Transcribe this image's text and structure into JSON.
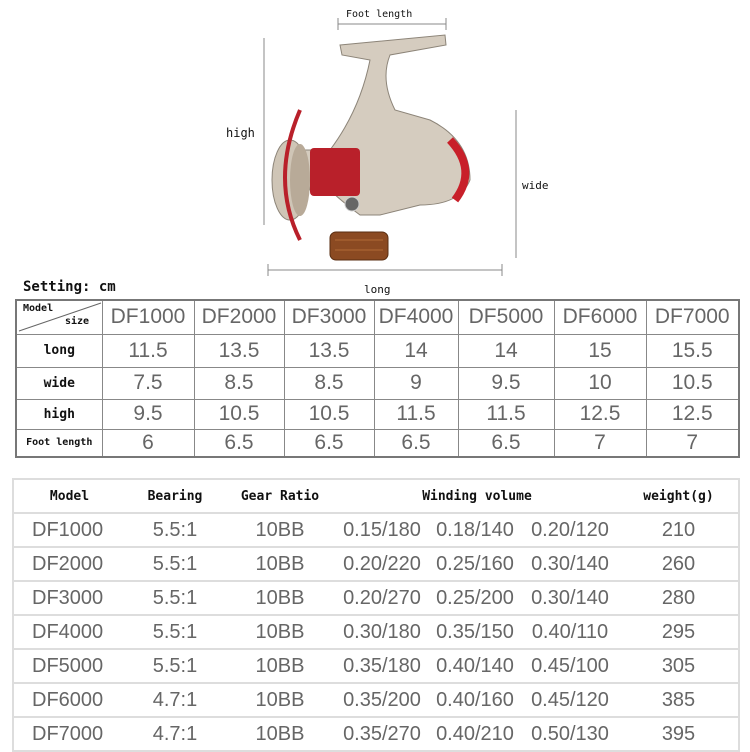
{
  "diagram": {
    "foot_length_label": "Foot length",
    "high_label": "high",
    "wide_label": "wide",
    "long_label": "long",
    "setting_label": "Setting: cm",
    "accent_color": "#c8202a",
    "body_color": "#d8cfc2"
  },
  "size_table": {
    "corner_top": "Model",
    "corner_bottom": "size",
    "models": [
      "DF1000",
      "DF2000",
      "DF3000",
      "DF4000",
      "DF5000",
      "DF6000",
      "DF7000"
    ],
    "rows": [
      {
        "label": "long",
        "values": [
          "11.5",
          "13.5",
          "13.5",
          "14",
          "14",
          "15",
          "15.5"
        ]
      },
      {
        "label": "wide",
        "values": [
          "7.5",
          "8.5",
          "8.5",
          "9",
          "9.5",
          "10",
          "10.5"
        ]
      },
      {
        "label": "high",
        "values": [
          "9.5",
          "10.5",
          "10.5",
          "11.5",
          "11.5",
          "12.5",
          "12.5"
        ]
      },
      {
        "label": "Foot length",
        "values": [
          "6",
          "6.5",
          "6.5",
          "6.5",
          "6.5",
          "7",
          "7"
        ]
      }
    ]
  },
  "spec_table": {
    "headers": [
      "Model",
      "Bearing",
      "Gear Ratio",
      "Winding volume",
      "weight(g)"
    ],
    "rows": [
      [
        "DF1000",
        "5.5:1",
        "10BB",
        "0.15/180",
        "0.18/140",
        "0.20/120",
        "210"
      ],
      [
        "DF2000",
        "5.5:1",
        "10BB",
        "0.20/220",
        "0.25/160",
        "0.30/140",
        "260"
      ],
      [
        "DF3000",
        "5.5:1",
        "10BB",
        "0.20/270",
        "0.25/200",
        "0.30/140",
        "280"
      ],
      [
        "DF4000",
        "5.5:1",
        "10BB",
        "0.30/180",
        "0.35/150",
        "0.40/110",
        "295"
      ],
      [
        "DF5000",
        "5.5:1",
        "10BB",
        "0.35/180",
        "0.40/140",
        "0.45/100",
        "305"
      ],
      [
        "DF6000",
        "4.7:1",
        "10BB",
        "0.35/200",
        "0.40/160",
        "0.45/120",
        "385"
      ],
      [
        "DF7000",
        "4.7:1",
        "10BB",
        "0.35/270",
        "0.40/210",
        "0.50/130",
        "395"
      ]
    ]
  }
}
